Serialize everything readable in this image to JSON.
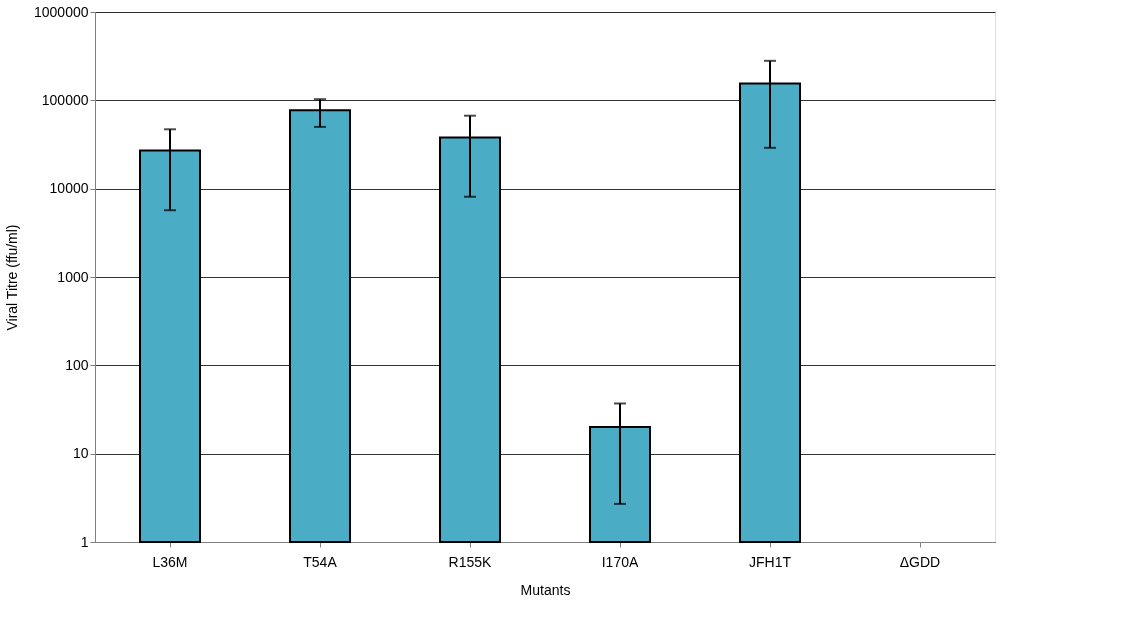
{
  "chart_data": {
    "type": "bar",
    "xlabel": "Mutants",
    "ylabel": "Viral Titre (ffu/ml)",
    "categories": [
      "L36M",
      "T54A",
      "R155K",
      "I170A",
      "JFH1T",
      "ΔGDD"
    ],
    "values": [
      27000,
      77000,
      38000,
      20,
      155000,
      null
    ],
    "errors": [
      [
        5700,
        47000
      ],
      [
        50000,
        103000
      ],
      [
        8100,
        67000
      ],
      [
        2.7,
        37
      ],
      [
        29000,
        280000
      ],
      null
    ],
    "color": "#4bacc6",
    "log": true,
    "ylim": [
      1,
      1000000
    ],
    "yticks": [
      1,
      10,
      100,
      1000,
      10000,
      100000,
      1000000
    ],
    "grid": "y"
  }
}
